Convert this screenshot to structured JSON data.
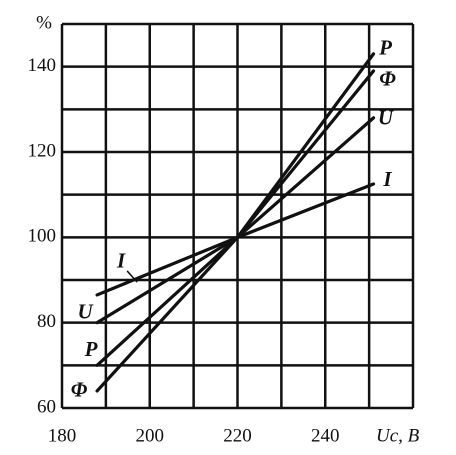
{
  "chart_data": {
    "type": "line",
    "ylabel": "%",
    "xlabel": "Uc, B",
    "x": [
      188,
      220,
      251
    ],
    "series": [
      {
        "name": "P",
        "color": "#111111",
        "values": [
          70,
          100,
          143
        ]
      },
      {
        "name": "Φ",
        "color": "#111111",
        "values": [
          64,
          100,
          139
        ]
      },
      {
        "name": "U",
        "color": "#111111",
        "values": [
          80,
          100,
          128
        ]
      },
      {
        "name": "I",
        "color": "#111111",
        "values": [
          86.5,
          100,
          112.5
        ]
      }
    ],
    "xlim": [
      180,
      260
    ],
    "ylim": [
      60,
      150
    ],
    "xticks": [
      180,
      200,
      220,
      240
    ],
    "yticks": [
      60,
      80,
      100,
      120,
      140
    ],
    "grid_x": [
      180,
      190,
      200,
      210,
      220,
      230,
      240,
      250,
      260
    ],
    "grid_y": [
      60,
      70,
      80,
      90,
      100,
      110,
      120,
      130,
      140,
      150
    ],
    "grid": true
  }
}
